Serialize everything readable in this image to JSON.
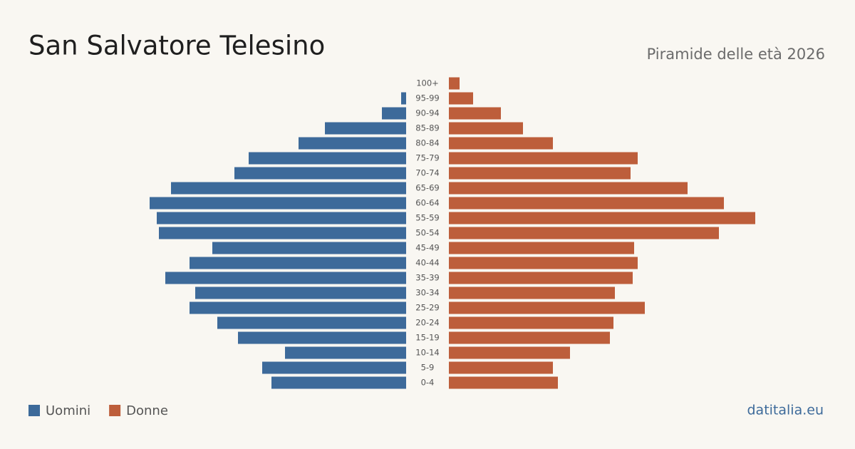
{
  "chart_data": {
    "type": "pyramid",
    "title": "San Salvatore Telesino",
    "subtitle": "Piramide delle età 2026",
    "source": "datitalia.eu",
    "categories": [
      "100+",
      "95-99",
      "90-94",
      "85-89",
      "80-84",
      "75-79",
      "70-74",
      "65-69",
      "60-64",
      "55-59",
      "50-54",
      "45-49",
      "40-44",
      "35-39",
      "30-34",
      "25-29",
      "20-24",
      "15-19",
      "10-14",
      "5-9",
      "0-4"
    ],
    "series": [
      {
        "name": "Uomini",
        "color": "#3d6a9a",
        "values": [
          0,
          7,
          34,
          114,
          151,
          221,
          241,
          330,
          360,
          350,
          347,
          272,
          304,
          338,
          296,
          304,
          265,
          236,
          170,
          202,
          189
        ]
      },
      {
        "name": "Donne",
        "color": "#bd5e3b",
        "values": [
          15,
          34,
          73,
          104,
          146,
          265,
          255,
          335,
          386,
          430,
          379,
          260,
          265,
          258,
          233,
          275,
          231,
          226,
          170,
          146,
          153
        ]
      }
    ]
  }
}
